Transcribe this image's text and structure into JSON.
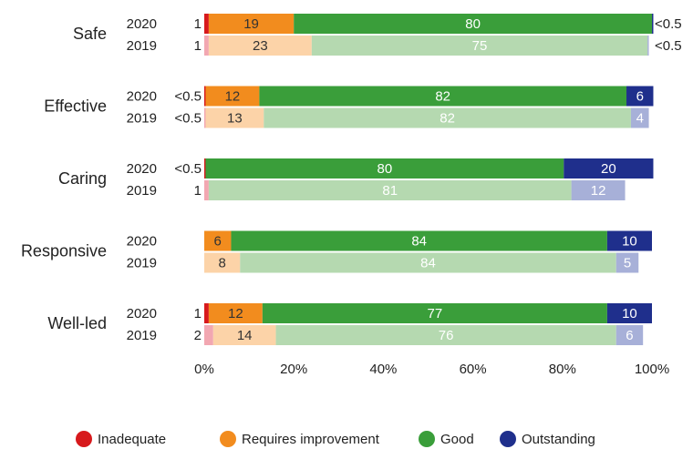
{
  "chart_data": {
    "type": "stacked-bar-horizontal",
    "categories": [
      "Safe",
      "Effective",
      "Caring",
      "Responsive",
      "Well-led"
    ],
    "subcategories": [
      "2020",
      "2019"
    ],
    "series": [
      {
        "name": "Inadequate",
        "color": "#d7191c",
        "light_color": "#f2a7b1",
        "values": [
          [
            1,
            1
          ],
          [
            0.3,
            0.3
          ],
          [
            0.3,
            1
          ],
          [
            null,
            null
          ],
          [
            1,
            2
          ]
        ],
        "value_labels": [
          [
            "1",
            "1"
          ],
          [
            "<0.5",
            "<0.5"
          ],
          [
            "<0.5",
            "1"
          ],
          [
            null,
            null
          ],
          [
            "1",
            "2"
          ]
        ]
      },
      {
        "name": "Requires improvement",
        "color": "#f28c1e",
        "light_color": "#fcd3a8",
        "values": [
          [
            19,
            23
          ],
          [
            12,
            13
          ],
          [
            null,
            null
          ],
          [
            6,
            8
          ],
          [
            12,
            14
          ]
        ]
      },
      {
        "name": "Good",
        "color": "#3a9e3a",
        "light_color": "#b5d9b0",
        "values": [
          [
            80,
            75
          ],
          [
            82,
            82
          ],
          [
            80,
            81
          ],
          [
            84,
            84
          ],
          [
            77,
            76
          ]
        ]
      },
      {
        "name": "Outstanding",
        "color": "#1f2f8c",
        "light_color": "#a7b0d8",
        "values": [
          [
            0.3,
            0.3
          ],
          [
            6,
            4
          ],
          [
            20,
            12
          ],
          [
            10,
            5
          ],
          [
            10,
            6
          ]
        ],
        "value_labels": [
          [
            "<0.5",
            "<0.5"
          ],
          [
            "6",
            "4"
          ],
          [
            "20",
            "12"
          ],
          [
            "10",
            "5"
          ],
          [
            "10",
            "6"
          ]
        ]
      }
    ],
    "xlim": [
      0,
      100
    ],
    "xticks": [
      {
        "value": 0,
        "label": "0%"
      },
      {
        "value": 20,
        "label": "20%"
      },
      {
        "value": 40,
        "label": "40%"
      },
      {
        "value": 60,
        "label": "60%"
      },
      {
        "value": 80,
        "label": "80%"
      },
      {
        "value": 100,
        "label": "100%"
      }
    ],
    "legend": "bottom"
  }
}
